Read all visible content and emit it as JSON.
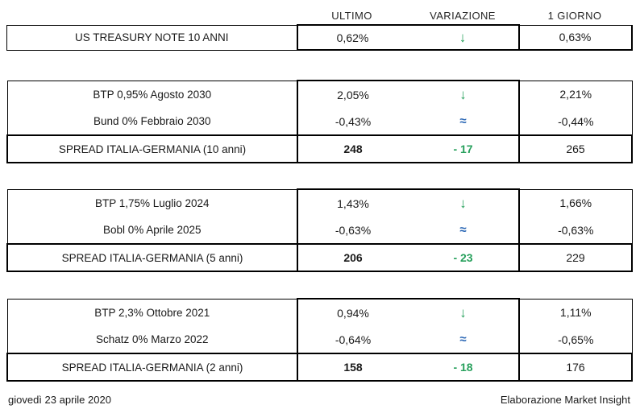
{
  "header": {
    "col_ultimo": "ULTIMO",
    "col_variazione": "VARIAZIONE",
    "col_giorno": "1 GIORNO"
  },
  "colors": {
    "green_accent": "#27a05c",
    "blue_accent": "#2b67b5",
    "border": "#000000",
    "text": "#1a1a1a"
  },
  "icons": {
    "down_arrow": "↓",
    "approx_equal": "≈"
  },
  "tables": [
    {
      "rows": [
        {
          "label": "US TREASURY NOTE 10 ANNI",
          "ultimo": "0,62%",
          "variazione": "↓",
          "trend": "down",
          "giorno": "0,63%"
        }
      ]
    },
    {
      "rows": [
        {
          "label": "BTP 0,95% Agosto 2030",
          "ultimo": "2,05%",
          "variazione": "↓",
          "trend": "down",
          "giorno": "2,21%"
        },
        {
          "label": "Bund 0% Febbraio 2030",
          "ultimo": "-0,43%",
          "variazione": "≈",
          "trend": "flat",
          "giorno": "-0,44%"
        },
        {
          "label": "SPREAD ITALIA-GERMANIA (10 anni)",
          "ultimo": "248",
          "variazione": "- 17",
          "trend": "down",
          "giorno": "265",
          "spread": true
        }
      ]
    },
    {
      "rows": [
        {
          "label": "BTP 1,75% Luglio 2024",
          "ultimo": "1,43%",
          "variazione": "↓",
          "trend": "down",
          "giorno": "1,66%"
        },
        {
          "label": "Bobl 0% Aprile 2025",
          "ultimo": "-0,63%",
          "variazione": "≈",
          "trend": "flat",
          "giorno": "-0,63%"
        },
        {
          "label": "SPREAD ITALIA-GERMANIA (5 anni)",
          "ultimo": "206",
          "variazione": "- 23",
          "trend": "down",
          "giorno": "229",
          "spread": true
        }
      ]
    },
    {
      "rows": [
        {
          "label": "BTP 2,3% Ottobre 2021",
          "ultimo": "0,94%",
          "variazione": "↓",
          "trend": "down",
          "giorno": "1,11%"
        },
        {
          "label": "Schatz 0% Marzo 2022",
          "ultimo": "-0,64%",
          "variazione": "≈",
          "trend": "flat",
          "giorno": "-0,65%"
        },
        {
          "label": "SPREAD ITALIA-GERMANIA (2 anni)",
          "ultimo": "158",
          "variazione": "- 18",
          "trend": "down",
          "giorno": "176",
          "spread": true
        }
      ]
    }
  ],
  "footer": {
    "date": "giovedì 23 aprile 2020",
    "credit": "Elaborazione Market Insight"
  }
}
